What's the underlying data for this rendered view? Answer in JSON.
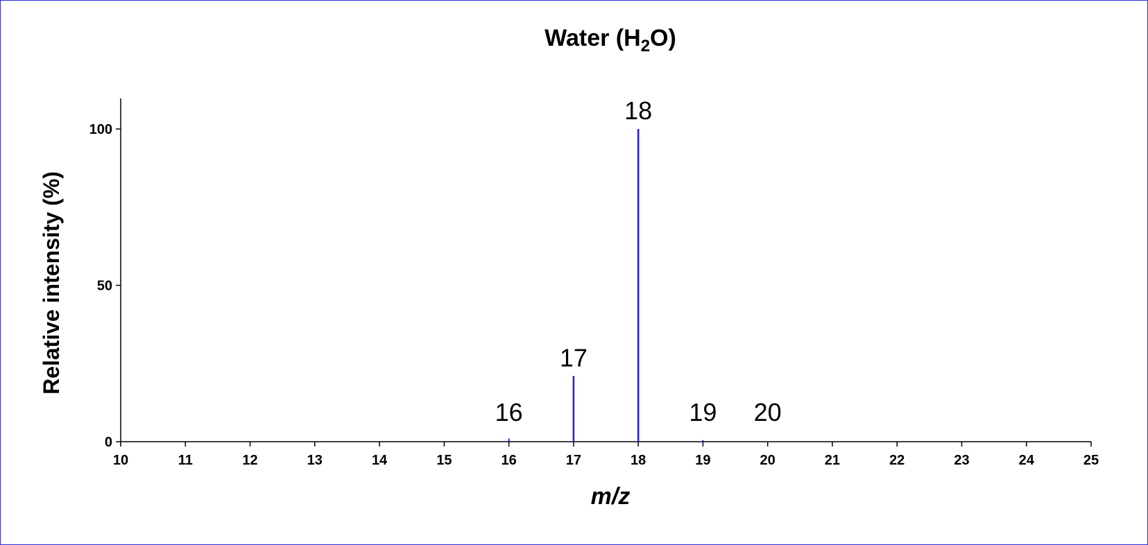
{
  "chart_data": {
    "type": "bar",
    "title": {
      "prefix": "Water (H",
      "subscript": "2",
      "suffix": "O)"
    },
    "xlabel": "m/z",
    "ylabel": "Relative intensity (%)",
    "xlim": [
      10,
      25
    ],
    "ylim": [
      0,
      110
    ],
    "x_ticks": [
      "10",
      "11",
      "12",
      "13",
      "14",
      "15",
      "16",
      "17",
      "18",
      "19",
      "20",
      "21",
      "22",
      "23",
      "24",
      "25"
    ],
    "y_ticks": [
      "0",
      "50",
      "100"
    ],
    "grid": false,
    "color": "#1f1fe0",
    "peaks": [
      {
        "x": 16,
        "y": 1,
        "label": "16"
      },
      {
        "x": 17,
        "y": 21,
        "label": "17"
      },
      {
        "x": 18,
        "y": 100,
        "label": "18"
      },
      {
        "x": 19,
        "y": 0.5,
        "label": "19"
      },
      {
        "x": 20,
        "y": 0.1,
        "label": "20"
      }
    ]
  }
}
